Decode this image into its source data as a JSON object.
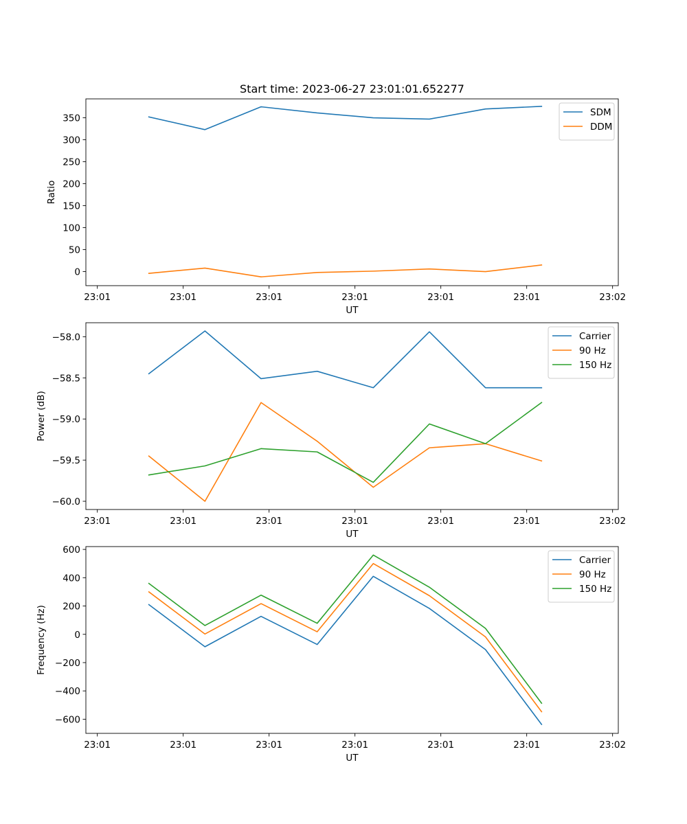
{
  "colors": {
    "blue": "#1f77b4",
    "orange": "#ff7f0e",
    "green": "#2ca02c",
    "axes": "#000000",
    "legend_border": "#cccccc"
  },
  "chart_data": [
    {
      "type": "line",
      "title": "Start time: 2023-06-27 23:01:01.652277",
      "xlabel": "UT",
      "ylabel": "Ratio",
      "xlim": [
        0,
        9.3
      ],
      "xticks": [
        0.2,
        1.7,
        3.2,
        4.7,
        6.2,
        7.7,
        9.2
      ],
      "xtick_labels": [
        "23:01",
        "23:01",
        "23:01",
        "23:01",
        "23:01",
        "23:01",
        "23:02"
      ],
      "ylim": [
        -32,
        393
      ],
      "yticks": [
        0,
        50,
        100,
        150,
        200,
        250,
        300,
        350
      ],
      "ytick_labels": [
        "0",
        "50",
        "100",
        "150",
        "200",
        "250",
        "300",
        "350"
      ],
      "legend_position": "upper right",
      "grid": false,
      "x": [
        1.1,
        2.08,
        3.06,
        4.04,
        5.02,
        6.0,
        6.98,
        7.96
      ],
      "series": [
        {
          "name": "SDM",
          "color": "#1f77b4",
          "values": [
            352,
            323,
            375,
            361,
            350,
            347,
            370,
            376
          ]
        },
        {
          "name": "DDM",
          "color": "#ff7f0e",
          "values": [
            -4,
            8,
            -12,
            -2,
            1,
            6,
            0,
            15
          ]
        }
      ]
    },
    {
      "type": "line",
      "title": "",
      "xlabel": "UT",
      "ylabel": "Power (dB)",
      "xlim": [
        0,
        9.3
      ],
      "xticks": [
        0.2,
        1.7,
        3.2,
        4.7,
        6.2,
        7.7,
        9.2
      ],
      "xtick_labels": [
        "23:01",
        "23:01",
        "23:01",
        "23:01",
        "23:01",
        "23:01",
        "23:02"
      ],
      "ylim": [
        -60.1,
        -57.83
      ],
      "yticks": [
        -60.0,
        -59.5,
        -59.0,
        -58.5,
        -58.0
      ],
      "ytick_labels": [
        "−60.0",
        "−59.5",
        "−59.0",
        "−58.5",
        "−58.0"
      ],
      "legend_position": "upper right",
      "grid": false,
      "x": [
        1.1,
        2.08,
        3.06,
        4.04,
        5.02,
        6.0,
        6.98,
        7.96
      ],
      "series": [
        {
          "name": "Carrier",
          "color": "#1f77b4",
          "values": [
            -58.45,
            -57.93,
            -58.51,
            -58.42,
            -58.62,
            -57.94,
            -58.62,
            -58.62
          ]
        },
        {
          "name": "90 Hz",
          "color": "#ff7f0e",
          "values": [
            -59.45,
            -60.0,
            -58.8,
            -59.27,
            -59.83,
            -59.35,
            -59.3,
            -59.51
          ]
        },
        {
          "name": "150 Hz",
          "color": "#2ca02c",
          "values": [
            -59.68,
            -59.57,
            -59.36,
            -59.4,
            -59.77,
            -59.06,
            -59.3,
            -58.8
          ]
        }
      ]
    },
    {
      "type": "line",
      "title": "",
      "xlabel": "UT",
      "ylabel": "Frequency (Hz)",
      "xlim": [
        0,
        9.3
      ],
      "xticks": [
        0.2,
        1.7,
        3.2,
        4.7,
        6.2,
        7.7,
        9.2
      ],
      "xtick_labels": [
        "23:01",
        "23:01",
        "23:01",
        "23:01",
        "23:01",
        "23:01",
        "23:02"
      ],
      "ylim": [
        -700,
        620
      ],
      "yticks": [
        -600,
        -400,
        -200,
        0,
        200,
        400,
        600
      ],
      "ytick_labels": [
        "−600",
        "−400",
        "−200",
        "0",
        "200",
        "400",
        "600"
      ],
      "legend_position": "upper right",
      "grid": false,
      "x": [
        1.1,
        2.08,
        3.06,
        4.04,
        5.02,
        6.0,
        6.98,
        7.96
      ],
      "series": [
        {
          "name": "Carrier",
          "color": "#1f77b4",
          "values": [
            210,
            -88,
            127,
            -72,
            410,
            183,
            -108,
            -637
          ]
        },
        {
          "name": "90 Hz",
          "color": "#ff7f0e",
          "values": [
            300,
            2,
            217,
            18,
            500,
            273,
            -18,
            -547
          ]
        },
        {
          "name": "150 Hz",
          "color": "#2ca02c",
          "values": [
            360,
            62,
            277,
            78,
            560,
            333,
            42,
            -487
          ]
        }
      ]
    }
  ]
}
